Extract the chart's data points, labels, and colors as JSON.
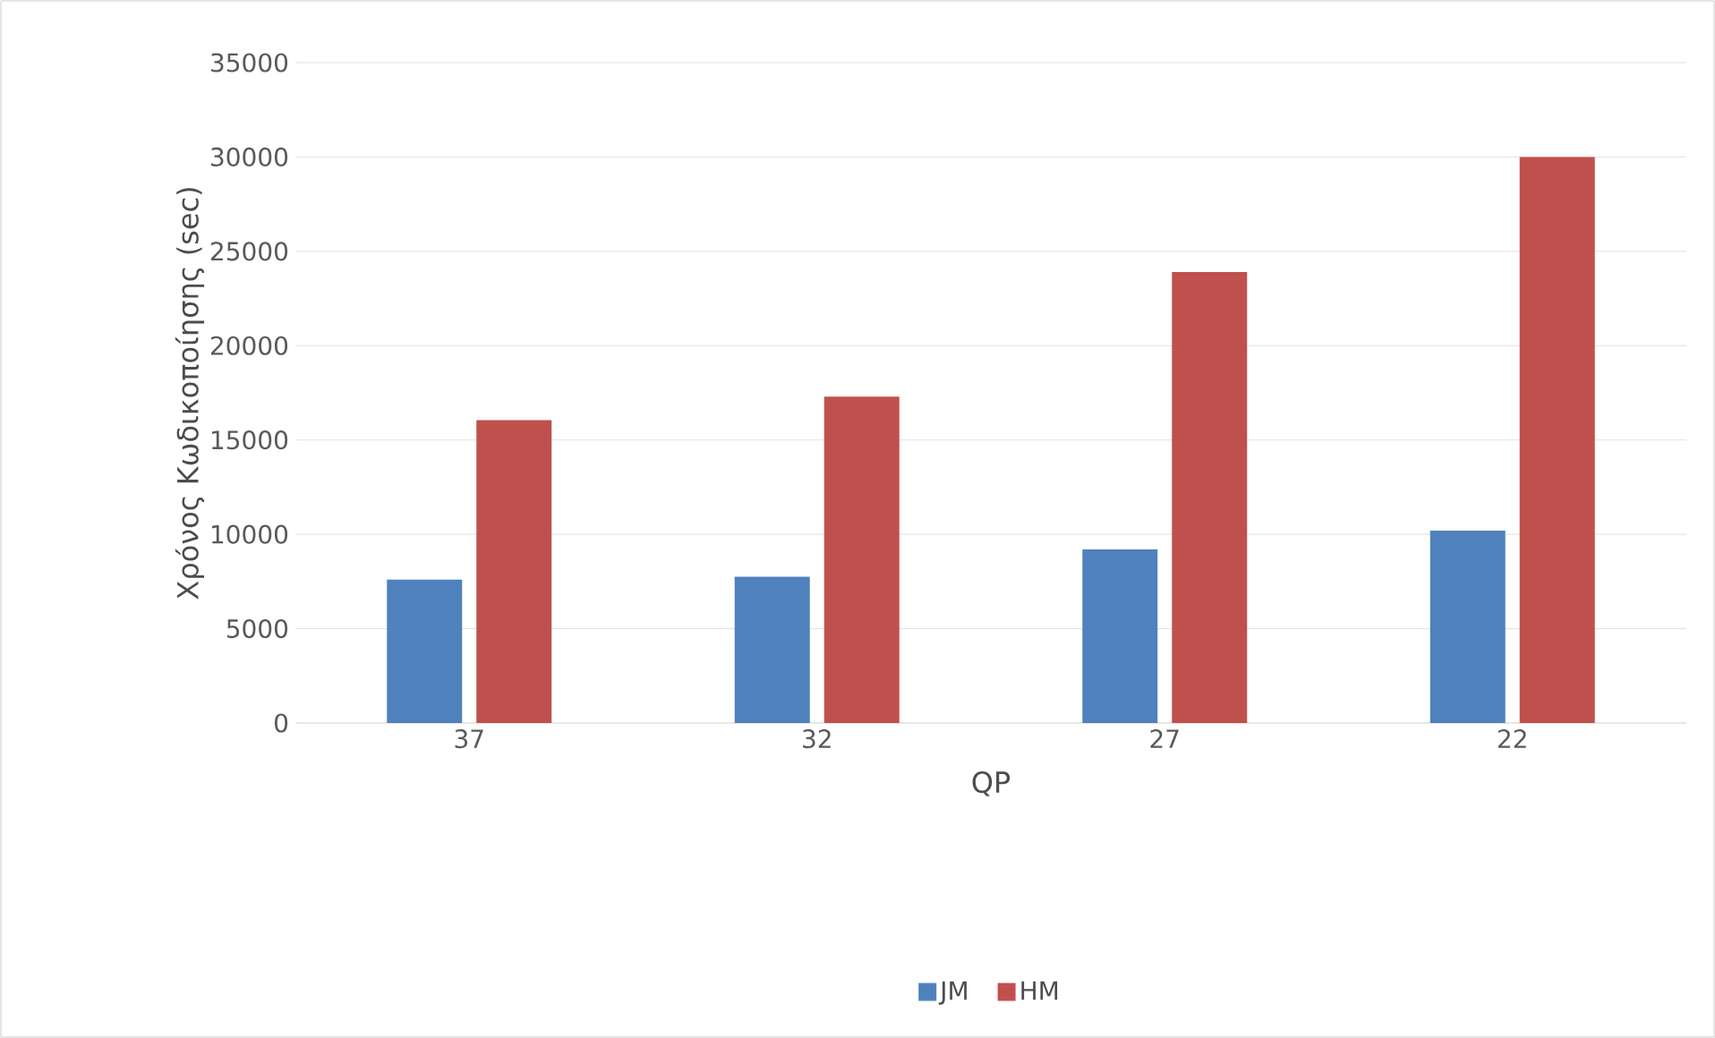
{
  "chart_data": {
    "type": "bar",
    "xlabel": "QP",
    "ylabel": "Χρόνος Κωδικοποίησης (sec)",
    "categories": [
      "37",
      "32",
      "27",
      "22"
    ],
    "series": [
      {
        "name": "JM",
        "color": "#4f81bd",
        "values": [
          7600,
          7750,
          9200,
          10200
        ]
      },
      {
        "name": "HM",
        "color": "#c0504d",
        "values": [
          16050,
          17300,
          23900,
          30000
        ]
      }
    ],
    "ylim": [
      0,
      35000
    ],
    "yticks": [
      0,
      5000,
      10000,
      15000,
      20000,
      25000,
      30000,
      35000
    ],
    "grid": "y",
    "legend": "bottom"
  }
}
